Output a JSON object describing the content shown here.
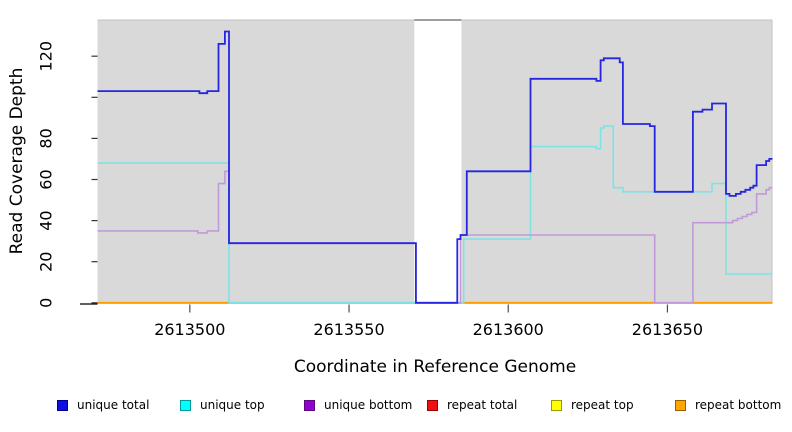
{
  "chart_data": {
    "type": "line",
    "subtype": "step",
    "title": "",
    "xlabel": "Coordinate in Reference Genome",
    "ylabel": "Read Coverage Depth",
    "xlim": [
      2613471,
      2613683
    ],
    "ylim": [
      0,
      138
    ],
    "x_ticks": [
      2613500,
      2613550,
      2613600,
      2613650
    ],
    "y_ticks": [
      0,
      20,
      40,
      60,
      80,
      100,
      120
    ],
    "y_tick_labels": [
      "0",
      "20",
      "40",
      "60",
      "80",
      "",
      "120"
    ],
    "grid": false,
    "legend_position": "bottom",
    "panel_bg": "#d9d9d9",
    "panel_border": "#c2c2c2",
    "gap_region": {
      "x_start": 2613570.5,
      "x_end": 2613585.3,
      "fill": "#ffffff",
      "cap_color": "#9e9e9e"
    },
    "axis_tick_color": "#4d4d4d",
    "series": [
      {
        "name": "unique total",
        "line_color": "#2626e0",
        "legend_fill": "#0f0fe0",
        "legend_border": "#000099",
        "line_width": 1.8,
        "z": 6,
        "points": [
          [
            2613471,
            103
          ],
          [
            2613503,
            102
          ],
          [
            2613505.5,
            103
          ],
          [
            2613509,
            126
          ],
          [
            2613511,
            132
          ],
          [
            2613512.3,
            29
          ],
          [
            2613571,
            0
          ],
          [
            2613584,
            31
          ],
          [
            2613585,
            33
          ],
          [
            2613587,
            64
          ],
          [
            2613607,
            109
          ],
          [
            2613627.7,
            108
          ],
          [
            2613629,
            118
          ],
          [
            2613630,
            119
          ],
          [
            2613635,
            117
          ],
          [
            2613636,
            87
          ],
          [
            2613644.5,
            86
          ],
          [
            2613646,
            54
          ],
          [
            2613658,
            93
          ],
          [
            2613661,
            94
          ],
          [
            2613664,
            97
          ],
          [
            2613668.4,
            53
          ],
          [
            2613669.5,
            52
          ],
          [
            2613671.5,
            53
          ],
          [
            2613673,
            54
          ],
          [
            2613674.5,
            55
          ],
          [
            2613676,
            56
          ],
          [
            2613677,
            57
          ],
          [
            2613678,
            67
          ],
          [
            2613681,
            69
          ],
          [
            2613682,
            70
          ]
        ]
      },
      {
        "name": "unique top",
        "line_color": "#7fe3e3",
        "legend_fill": "#00ffff",
        "legend_border": "#009999",
        "line_width": 1.6,
        "z": 4,
        "points": [
          [
            2613471,
            68
          ],
          [
            2613512.3,
            0
          ],
          [
            2613586,
            31
          ],
          [
            2613607,
            76
          ],
          [
            2613627.7,
            75
          ],
          [
            2613629,
            85
          ],
          [
            2613630,
            86
          ],
          [
            2613633,
            56
          ],
          [
            2613636,
            54
          ],
          [
            2613664,
            58
          ],
          [
            2613668.4,
            14
          ]
        ]
      },
      {
        "name": "unique bottom",
        "line_color": "#c09ad8",
        "legend_fill": "#9400d3",
        "legend_border": "#5a0a7a",
        "line_width": 1.6,
        "z": 5,
        "points": [
          [
            2613471,
            35
          ],
          [
            2613502.5,
            34
          ],
          [
            2613505.5,
            35
          ],
          [
            2613509,
            58
          ],
          [
            2613511,
            64
          ],
          [
            2613512.3,
            29
          ],
          [
            2613571,
            0
          ],
          [
            2613585,
            33
          ],
          [
            2613646,
            0
          ],
          [
            2613658,
            39
          ],
          [
            2613670.5,
            40
          ],
          [
            2613672,
            41
          ],
          [
            2613673.5,
            42
          ],
          [
            2613675,
            43
          ],
          [
            2613676.5,
            44
          ],
          [
            2613678,
            53
          ],
          [
            2613681,
            55
          ],
          [
            2613682,
            56
          ]
        ]
      },
      {
        "name": "repeat total",
        "line_color": "#dd0000",
        "legend_fill": "#ee1111",
        "legend_border": "#990000",
        "line_width": 1.6,
        "z": 1,
        "points": [
          [
            2613471,
            0
          ]
        ]
      },
      {
        "name": "repeat top",
        "line_color": "#ffff33",
        "legend_fill": "#ffff00",
        "legend_border": "#999900",
        "line_width": 1.6,
        "z": 2,
        "points": [
          [
            2613471,
            0
          ]
        ]
      },
      {
        "name": "repeat bottom",
        "line_color": "#ff9d00",
        "legend_fill": "#ffa500",
        "legend_border": "#995e00",
        "line_width": 1.8,
        "z": 3,
        "points": [
          [
            2613471,
            0
          ]
        ]
      }
    ]
  }
}
